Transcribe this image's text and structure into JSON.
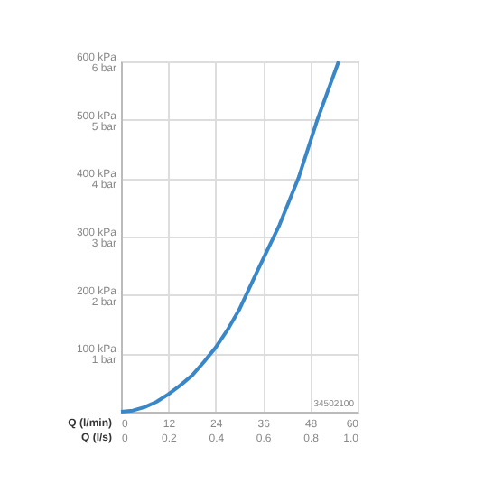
{
  "chart_data": {
    "type": "line",
    "xlabel": "Q (l/s)",
    "x2label": "Q (l/min)",
    "x": [
      0,
      0.05,
      0.1,
      0.15,
      0.2,
      0.25,
      0.3,
      0.35,
      0.4,
      0.45,
      0.5,
      0.58,
      0.67,
      0.75,
      0.83,
      0.92
    ],
    "series": [
      {
        "color": "#3a87c8",
        "values": [
          0,
          2,
          8,
          17,
          30,
          45,
          62,
          85,
          110,
          140,
          175,
          244,
          320,
          400,
          500,
          600
        ]
      }
    ],
    "xlim": [
      0,
      1.0
    ],
    "xticks": [
      {
        "value": 0,
        "label": "0"
      },
      0.2,
      0.4,
      0.6,
      0.8,
      {
        "value": 1.0,
        "label": "1.0"
      }
    ],
    "x2lim": [
      0,
      60
    ],
    "x2ticks": [
      0,
      12,
      24,
      36,
      48,
      60
    ],
    "ylim": [
      0,
      600
    ],
    "yticks": [
      {
        "value": 100,
        "label": "100 kPa"
      },
      {
        "value": 200,
        "label": "200 kPa"
      },
      {
        "value": 300,
        "label": "300 kPa"
      },
      {
        "value": 400,
        "label": "400 kPa"
      },
      {
        "value": 500,
        "label": "500 kPa"
      },
      {
        "value": 600,
        "label": "600 kPa"
      }
    ],
    "y2lim": [
      0,
      6
    ],
    "y2ticks": [
      {
        "value": 1,
        "label": "1 bar"
      },
      {
        "value": 2,
        "label": "2 bar"
      },
      {
        "value": 3,
        "label": "3 bar"
      },
      {
        "value": 4,
        "label": "4 bar"
      },
      {
        "value": 5,
        "label": "5 bar"
      },
      {
        "value": 6,
        "label": "6 bar"
      }
    ],
    "annotations": [
      "34502100"
    ],
    "grid": true,
    "marker": "none",
    "line_style": "solid"
  }
}
